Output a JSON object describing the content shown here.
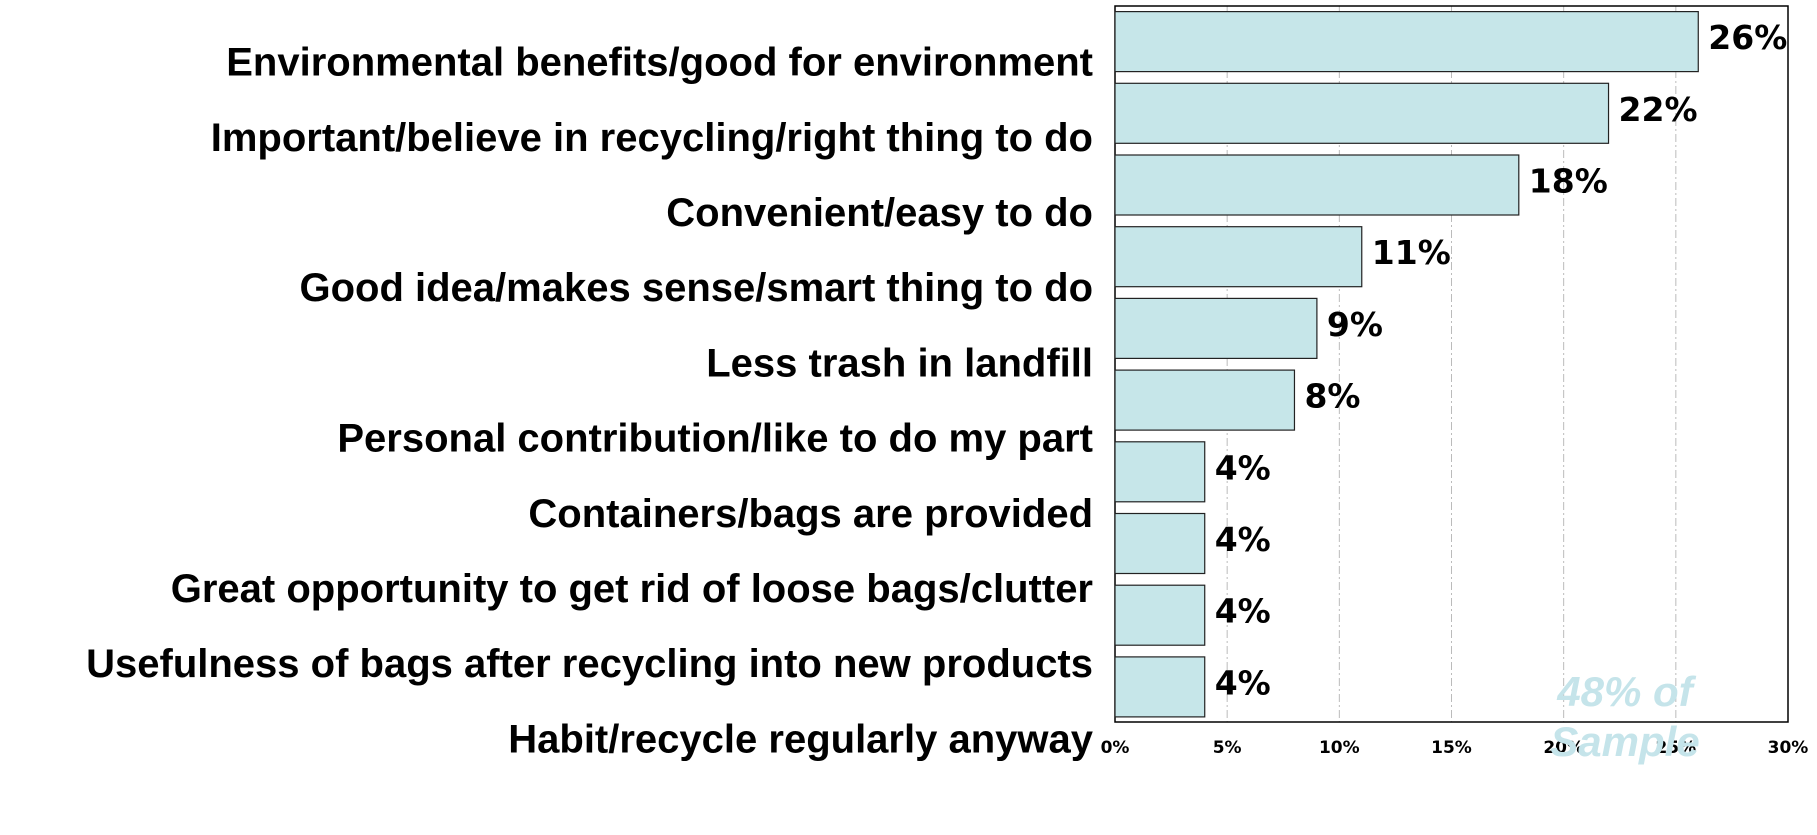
{
  "chart_data": {
    "type": "bar",
    "orientation": "horizontal",
    "categories": [
      "Environmental benefits/good for environment",
      "Important/believe in recycling/right thing to do",
      "Convenient/easy to do",
      "Good idea/makes sense/smart thing to do",
      "Less trash in landfill",
      "Personal contribution/like to do my part",
      "Containers/bags are provided",
      "Great opportunity to get rid of loose bags/clutter",
      "Usefulness of bags after recycling into new products",
      "Habit/recycle regularly anyway"
    ],
    "values": [
      26,
      22,
      18,
      11,
      9,
      8,
      4,
      4,
      4,
      4
    ],
    "value_labels": [
      "26%",
      "22%",
      "18%",
      "11%",
      "9%",
      "8%",
      "4%",
      "4%",
      "4%",
      "4%"
    ],
    "extra_category": "Habit/recycle regularly anyway",
    "color": "#c6e6e9",
    "xlim": [
      0,
      30
    ],
    "xticks": [
      {
        "value": 0,
        "label": "0%"
      },
      {
        "value": 5,
        "label": "5%"
      },
      {
        "value": 10,
        "label": "10%"
      },
      {
        "value": 15,
        "label": "15%"
      },
      {
        "value": 20,
        "label": "20%"
      },
      {
        "value": 25,
        "label": "25%"
      },
      {
        "value": 30,
        "label": "30%"
      }
    ],
    "grid": true,
    "annotation": [
      "48% of",
      "Sample"
    ]
  }
}
